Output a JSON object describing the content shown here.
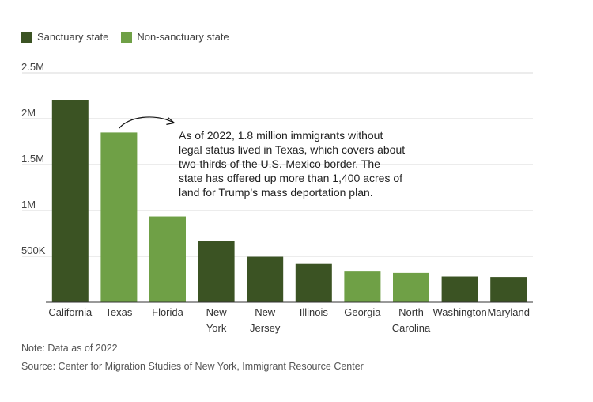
{
  "legend": {
    "sanctuary": {
      "label": "Sanctuary state",
      "color": "#3b5323"
    },
    "non_sanctuary": {
      "label": "Non-sanctuary state",
      "color": "#6fa046"
    }
  },
  "chart_data": {
    "type": "bar",
    "categories": [
      [
        "California"
      ],
      [
        "Texas"
      ],
      [
        "Florida"
      ],
      [
        "New",
        "York"
      ],
      [
        "New",
        "Jersey"
      ],
      [
        "Illinois"
      ],
      [
        "Georgia"
      ],
      [
        "North",
        "Carolina"
      ],
      [
        "Washington"
      ],
      [
        "Maryland"
      ]
    ],
    "values": [
      2200000,
      1850000,
      935000,
      670000,
      495000,
      425000,
      335000,
      320000,
      280000,
      275000
    ],
    "status": [
      "sanctuary",
      "non_sanctuary",
      "non_sanctuary",
      "sanctuary",
      "sanctuary",
      "sanctuary",
      "non_sanctuary",
      "non_sanctuary",
      "sanctuary",
      "sanctuary"
    ],
    "ylim": [
      0,
      2500000
    ],
    "yticks": [
      {
        "value": 500000,
        "label": "500K"
      },
      {
        "value": 1000000,
        "label": "1M"
      },
      {
        "value": 1500000,
        "label": "1.5M"
      },
      {
        "value": 2000000,
        "label": "2M"
      },
      {
        "value": 2500000,
        "label": "2.5M"
      }
    ],
    "grid": true,
    "legend_position": "top-left",
    "annotation": {
      "target": "Texas",
      "lines": [
        "As of 2022, 1.8 million immigrants without",
        "legal status lived in Texas, which covers about",
        "two-thirds of the U.S.-Mexico border. The",
        "state has offered up more than 1,400 acres of",
        "land for Trump’s mass deportation plan."
      ]
    }
  },
  "footer": {
    "note": "Note: Data as of 2022",
    "source": "Source: Center for Migration Studies of New York, Immigrant Resource Center"
  }
}
